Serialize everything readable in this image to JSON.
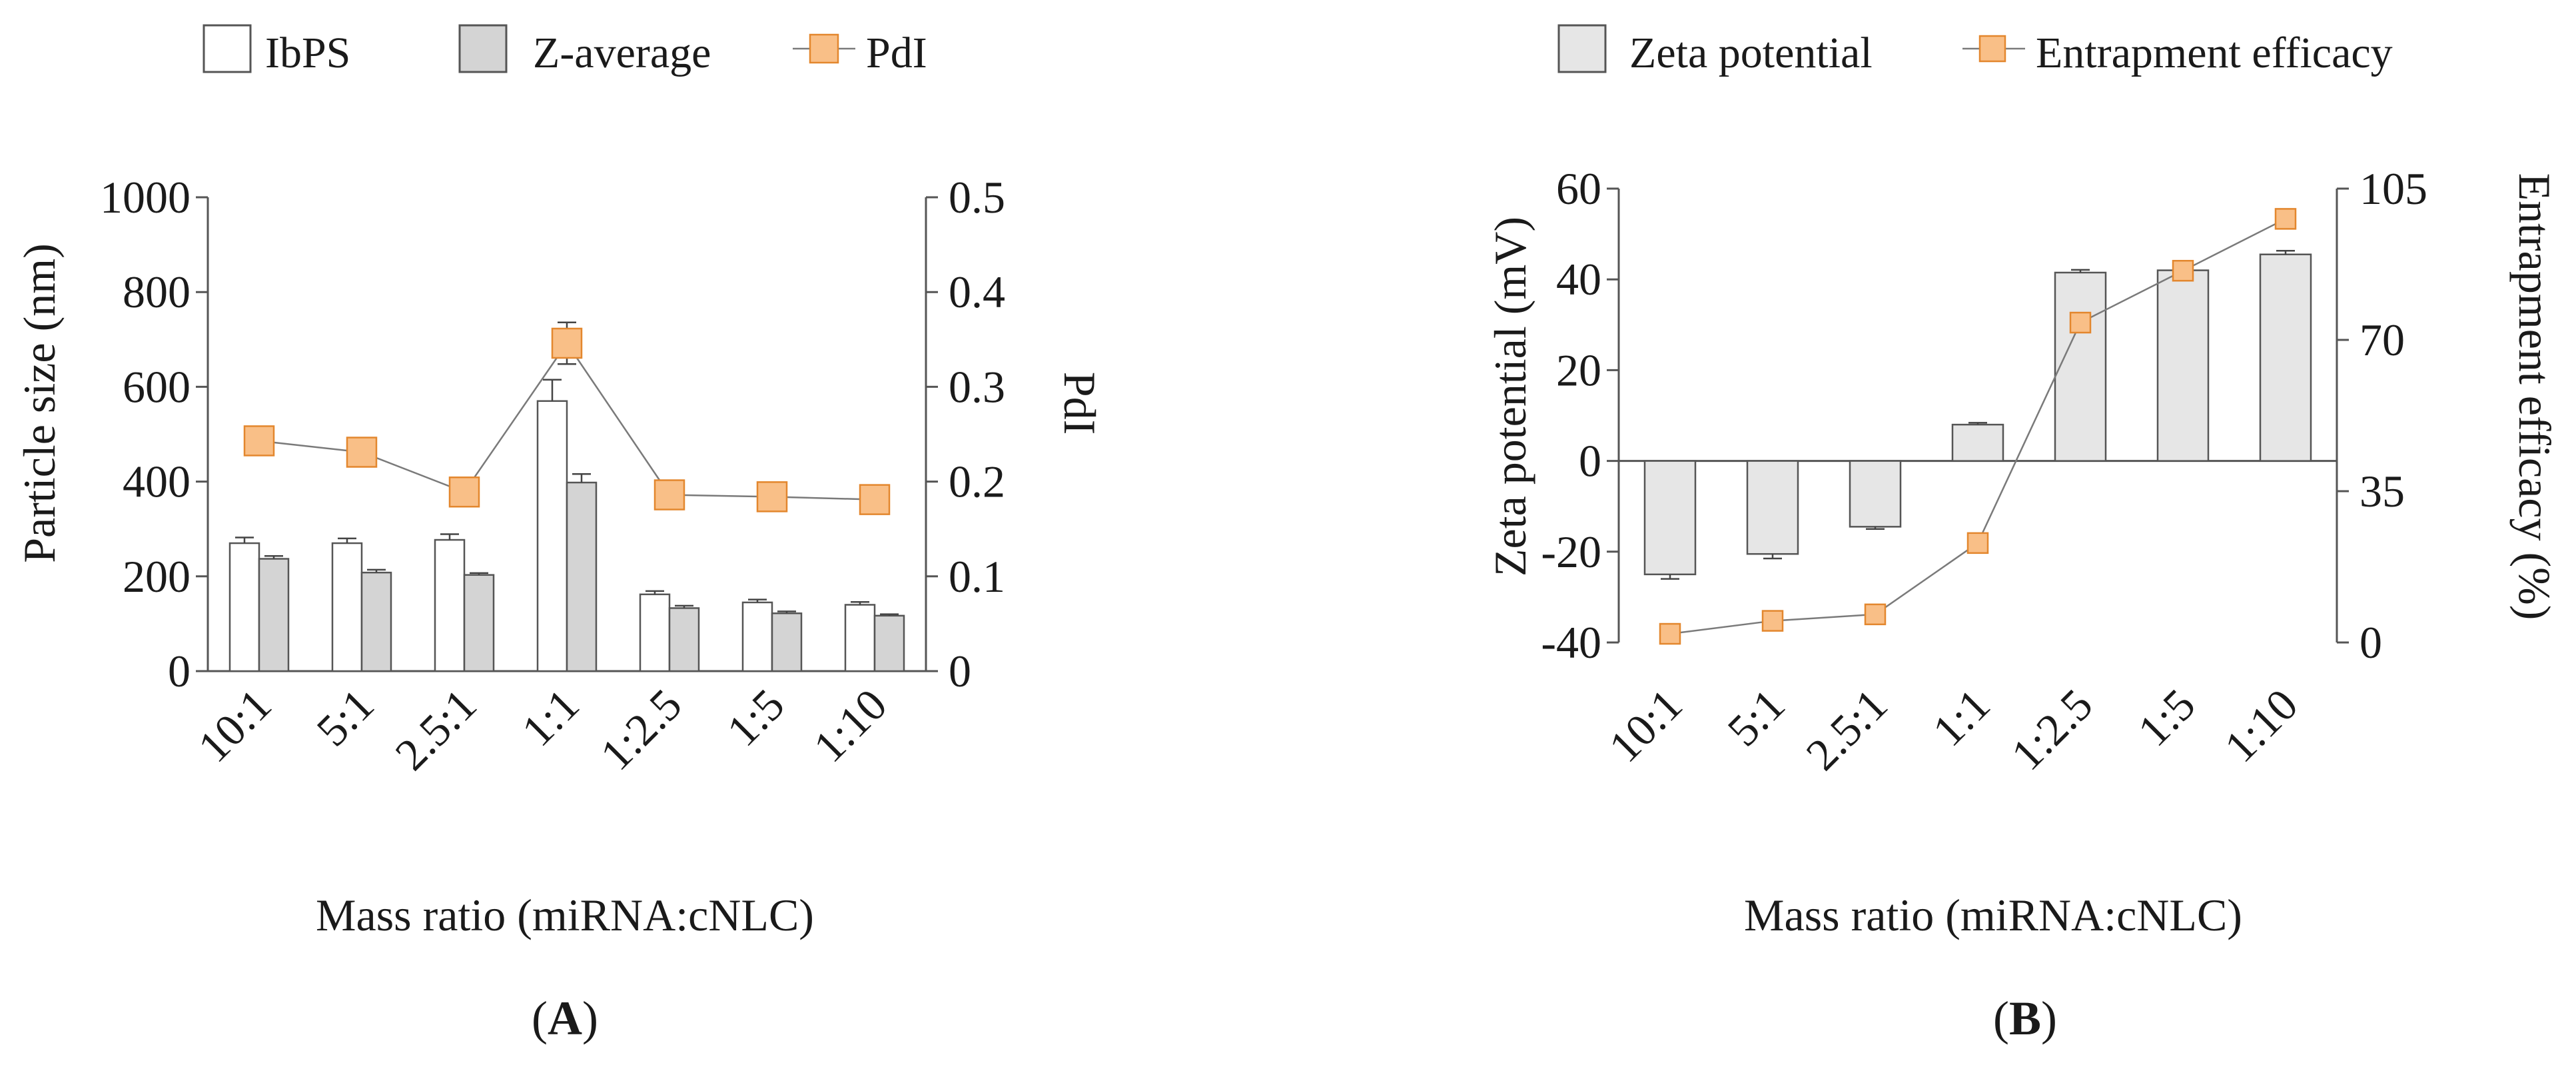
{
  "chart_data": [
    {
      "type": "bar",
      "panel_label": "A",
      "categories": [
        "10:1",
        "5:1",
        "2.5:1",
        "1:1",
        "1:2.5",
        "1:5",
        "1:10"
      ],
      "xlabel": "Mass ratio (miRNA:cNLC)",
      "ylabel": "Particle size (nm)",
      "ylabel_right": "PdI",
      "ylim": [
        0,
        1000
      ],
      "ylim_right": [
        0,
        0.5
      ],
      "yticks": [
        "0",
        "200",
        "400",
        "600",
        "800",
        "1000"
      ],
      "yticks_right": [
        "0",
        "0.1",
        "0.2",
        "0.3",
        "0.4",
        "0.5"
      ],
      "legend": [
        "IbPS",
        "Z-average",
        "PdI"
      ],
      "legend_position": "top",
      "series": [
        {
          "name": "IbPS",
          "kind": "bar",
          "color": "#ffffff",
          "values": [
            270,
            270,
            277,
            570,
            162,
            145,
            140
          ],
          "errors": [
            12,
            10,
            12,
            45,
            7,
            6,
            6
          ]
        },
        {
          "name": "Z-average",
          "kind": "bar",
          "color": "#d4d4d4",
          "values": [
            237,
            208,
            203,
            398,
            133,
            122,
            117
          ],
          "errors": [
            6,
            6,
            4,
            18,
            5,
            4,
            3
          ]
        },
        {
          "name": "PdI",
          "kind": "line",
          "axis": "right",
          "color": "#f9bf87",
          "values": [
            0.243,
            0.231,
            0.189,
            0.346,
            0.186,
            0.184,
            0.181
          ],
          "errors": [
            0,
            0,
            0.015,
            0.022,
            0,
            0,
            0
          ]
        }
      ]
    },
    {
      "type": "bar",
      "panel_label": "B",
      "categories": [
        "10:1",
        "5:1",
        "2.5:1",
        "1:1",
        "1:2.5",
        "1:5",
        "1:10"
      ],
      "xlabel": "Mass ratio (miRNA:cNLC)",
      "ylabel": "Zeta potential (mV)",
      "ylabel_right": "Entrapment efficacy (%)",
      "ylim": [
        -40,
        60
      ],
      "ylim_right": [
        0,
        105
      ],
      "yticks": [
        "-40",
        "-20",
        "0",
        "20",
        "40",
        "60"
      ],
      "yticks_right": [
        "0",
        "35",
        "70",
        "105"
      ],
      "legend": [
        "Zeta potential",
        "Entrapment efficacy"
      ],
      "legend_position": "top",
      "series": [
        {
          "name": "Zeta potential",
          "kind": "bar",
          "color": "#e6e6e6",
          "values": [
            -25.0,
            -20.5,
            -14.5,
            8.0,
            41.5,
            42.0,
            45.5
          ],
          "errors": [
            1.0,
            1.0,
            0.5,
            0.4,
            0.6,
            0.6,
            0.8
          ]
        },
        {
          "name": "Entrapment efficacy",
          "kind": "line",
          "axis": "right",
          "color": "#f9bf87",
          "values": [
            2,
            5,
            6.5,
            23,
            74,
            86,
            98
          ],
          "errors": [
            0,
            0,
            0,
            0,
            0,
            0,
            0
          ]
        }
      ]
    }
  ]
}
